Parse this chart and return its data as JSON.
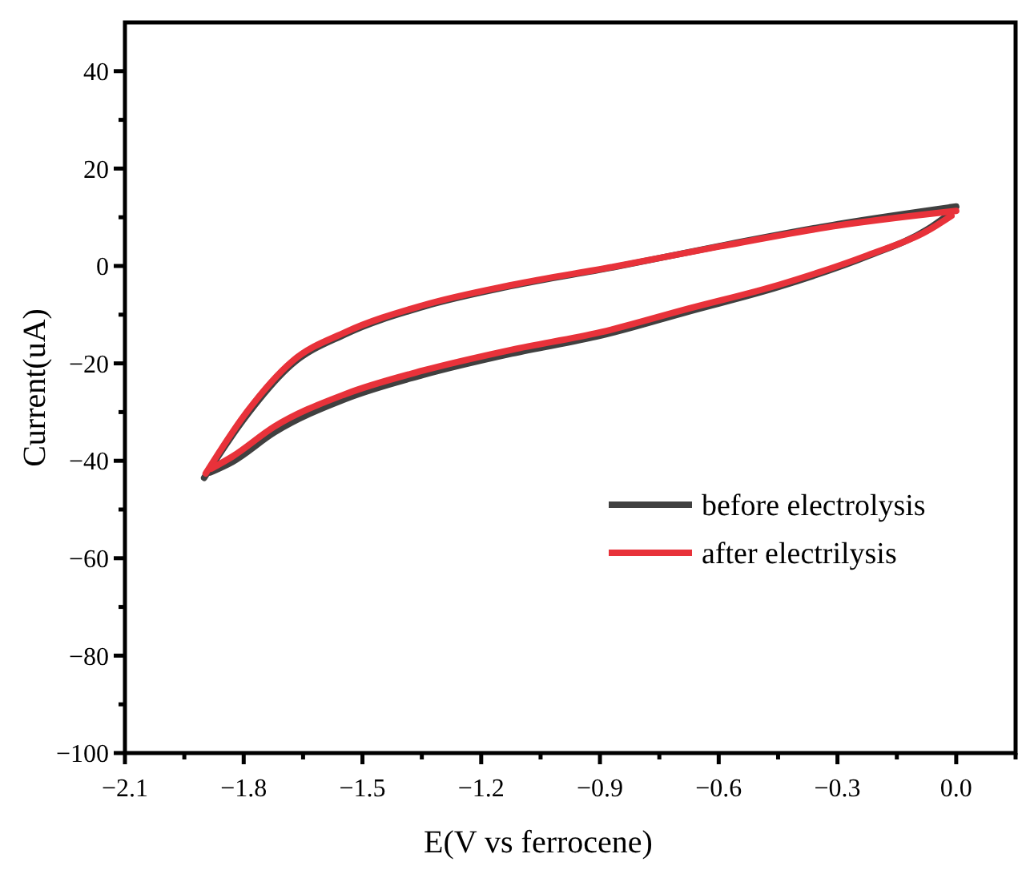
{
  "chart_data": {
    "type": "line",
    "xlabel": "E(V vs ferrocene)",
    "ylabel": "Current(uA)",
    "xlim": [
      -2.1,
      0.15
    ],
    "ylim": [
      -100,
      50
    ],
    "xticks": [
      -2.1,
      {
        "value": -1.95,
        "label": null
      },
      -1.8,
      {
        "value": -1.65,
        "label": null
      },
      -1.5,
      {
        "value": -1.35,
        "label": null
      },
      -1.2,
      {
        "value": -1.05,
        "label": null
      },
      -0.9,
      {
        "value": -0.75,
        "label": null
      },
      -0.6,
      {
        "value": -0.45,
        "label": null
      },
      -0.3,
      {
        "value": -0.15,
        "label": null
      },
      {
        "value": 0,
        "label": "0.0"
      },
      {
        "value": 0.15,
        "label": null
      }
    ],
    "yticks": [
      -100,
      {
        "value": -90,
        "label": null
      },
      -80,
      {
        "value": -70,
        "label": null
      },
      -60,
      {
        "value": -50,
        "label": null
      },
      -40,
      {
        "value": -30,
        "label": null
      },
      -20,
      {
        "value": -10,
        "label": null
      },
      0,
      {
        "value": 10,
        "label": null
      },
      20,
      {
        "value": 30,
        "label": null
      },
      40
    ],
    "grid": false,
    "legend": "right",
    "marker": "none",
    "line_style": "solid",
    "series": [
      {
        "name": "before electrolysis",
        "color": "#404040",
        "x": [
          -1.9,
          -1.8,
          -1.68,
          -1.543,
          -1.348,
          -1.123,
          -0.868,
          -0.598,
          -0.298,
          0.0
        ],
        "values": [
          -43.5,
          -31.5,
          -20.3,
          -14.0,
          -8.4,
          -4.1,
          -0.3,
          4.1,
          8.6,
          12.2
        ]
      },
      {
        "color": "#404040",
        "x": [
          -1.885,
          -1.828,
          -1.723,
          -1.543,
          -1.348,
          -1.123,
          -0.898,
          -0.674,
          -0.449,
          -0.224,
          -0.075,
          -0.012
        ],
        "values": [
          -42.4,
          -40.2,
          -34.2,
          -27.3,
          -22.4,
          -18.0,
          -14.3,
          -9.3,
          -4.3,
          2.0,
          7.4,
          11.0
        ]
      },
      {
        "name": "after electrilysis",
        "color": "#e8323a",
        "x": [
          -1.896,
          -1.798,
          -1.678,
          -1.543,
          -1.348,
          -1.123,
          -0.868,
          -0.598,
          -0.298,
          0.0
        ],
        "values": [
          -42.6,
          -30.6,
          -19.6,
          -13.6,
          -8.1,
          -3.9,
          -0.2,
          4.0,
          8.3,
          11.3
        ]
      },
      {
        "color": "#e8323a",
        "x": [
          -1.882,
          -1.828,
          -1.723,
          -1.543,
          -1.348,
          -1.123,
          -0.898,
          -0.674,
          -0.449,
          -0.224,
          -0.075,
          -0.012
        ],
        "values": [
          -41.6,
          -39.1,
          -33.0,
          -26.3,
          -21.5,
          -17.2,
          -13.6,
          -8.7,
          -3.9,
          2.2,
          7.1,
          10.3
        ]
      }
    ]
  }
}
